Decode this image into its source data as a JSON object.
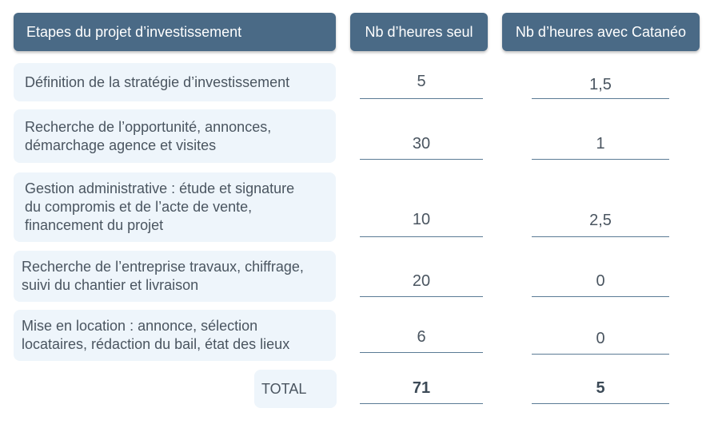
{
  "headers": {
    "steps": "Etapes du projet d’investissement",
    "alone": "Nb d’heures seul",
    "with": "Nb d’heures avec Catanéo"
  },
  "rows": [
    {
      "lines": [
        "Définition de la stratégie d’investissement"
      ],
      "alone": "5",
      "with": "1,5"
    },
    {
      "lines": [
        "Recherche de l’opportunité, annonces,",
        "démarchage agence et visites"
      ],
      "alone": "30",
      "with": "1"
    },
    {
      "lines": [
        "Gestion administrative : étude et signature",
        "du compromis et de l’acte de vente,",
        "financement du projet"
      ],
      "alone": "10",
      "with": "2,5"
    },
    {
      "lines": [
        "Recherche de l’entreprise travaux, chiffrage,",
        "suivi du chantier et livraison"
      ],
      "alone": "20",
      "with": "0"
    },
    {
      "lines": [
        "Mise en location : annonce, sélection",
        "locataires, rédaction du bail, état des lieux"
      ],
      "alone": "6",
      "with": "0"
    }
  ],
  "total": {
    "label": "TOTAL",
    "alone": "71",
    "with": "5"
  }
}
